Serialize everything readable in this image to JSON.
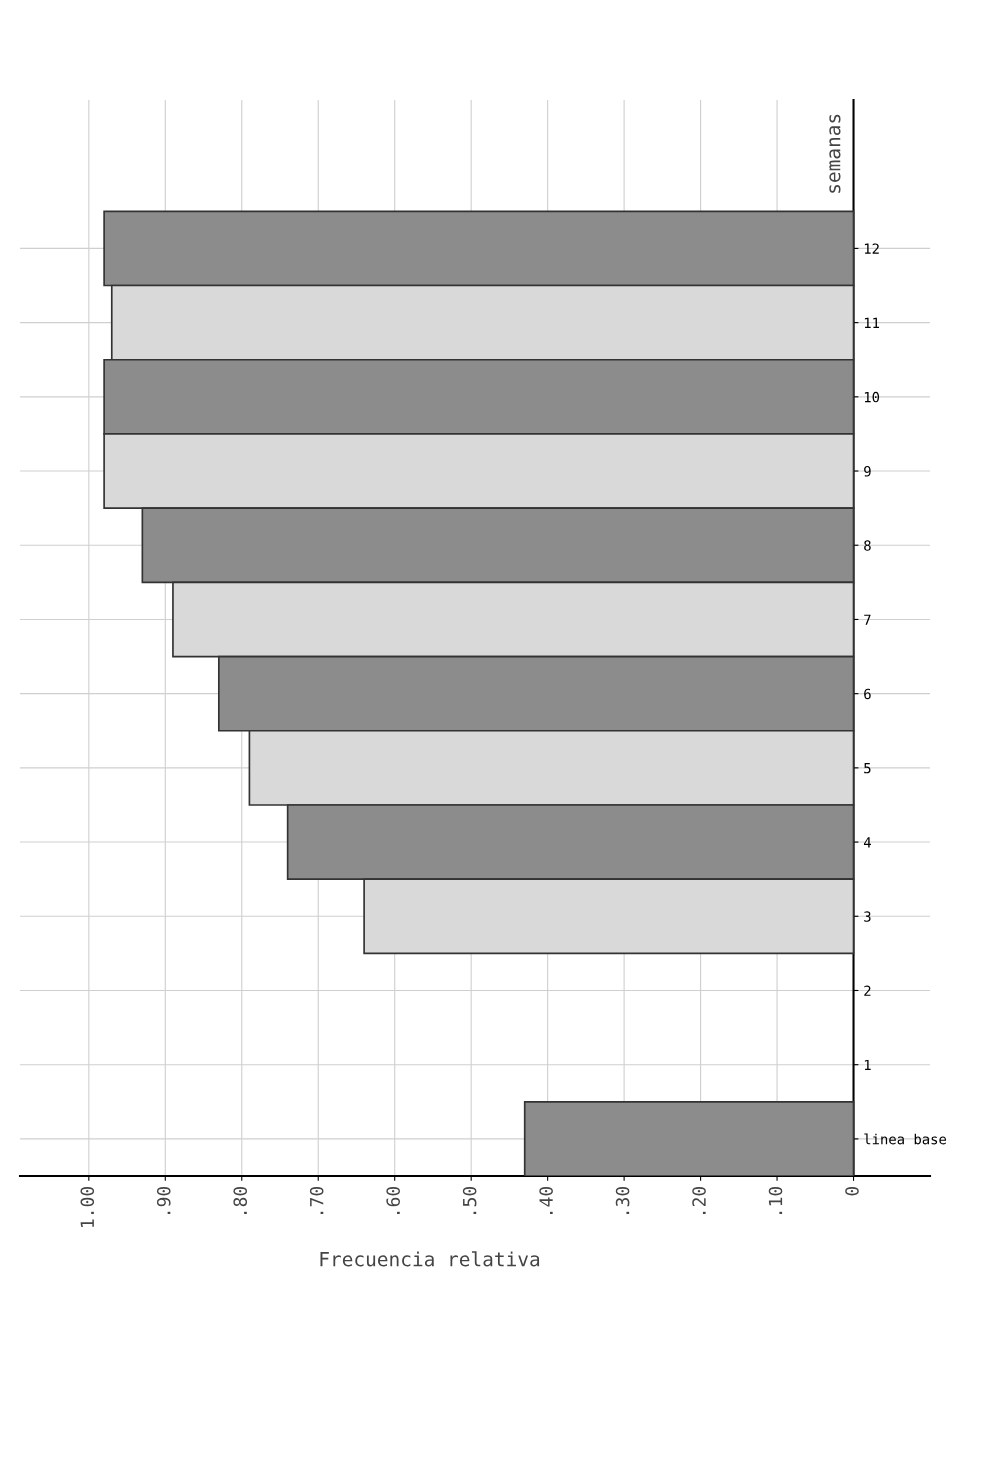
{
  "chart_data": {
    "type": "bar",
    "orientation": "horizontal",
    "xlabel": "Frecuencia relativa",
    "ylabel": "semanas",
    "categories": [
      "12",
      "11",
      "10",
      "9",
      "8",
      "7",
      "6",
      "5",
      "4",
      "3",
      "2",
      "1",
      "linea base"
    ],
    "values": [
      0.98,
      0.97,
      0.98,
      0.98,
      0.93,
      0.89,
      0.83,
      0.79,
      0.74,
      0.64,
      null,
      null,
      0.43
    ],
    "colors": [
      "#8c8c8c",
      "#d9d9d9",
      "#8c8c8c",
      "#d9d9d9",
      "#8c8c8c",
      "#d9d9d9",
      "#8c8c8c",
      "#d9d9d9",
      "#8c8c8c",
      "#d9d9d9",
      null,
      null,
      "#8c8c8c"
    ],
    "xlim": [
      1.09,
      -0.1
    ],
    "xticks": [
      0,
      {
        "value": 0.1,
        "label": ".10"
      },
      {
        "value": 0.2,
        "label": ".20"
      },
      {
        "value": 0.3,
        "label": ".30"
      },
      {
        "value": 0.4,
        "label": ".40"
      },
      {
        "value": 0.5,
        "label": ".50"
      },
      {
        "value": 0.6,
        "label": ".60"
      },
      {
        "value": 0.7,
        "label": ".70"
      },
      {
        "value": 0.8,
        "label": ".80"
      },
      {
        "value": 0.9,
        "label": ".90"
      },
      {
        "value": 1.0,
        "label": "1.00"
      }
    ],
    "grid": true
  }
}
